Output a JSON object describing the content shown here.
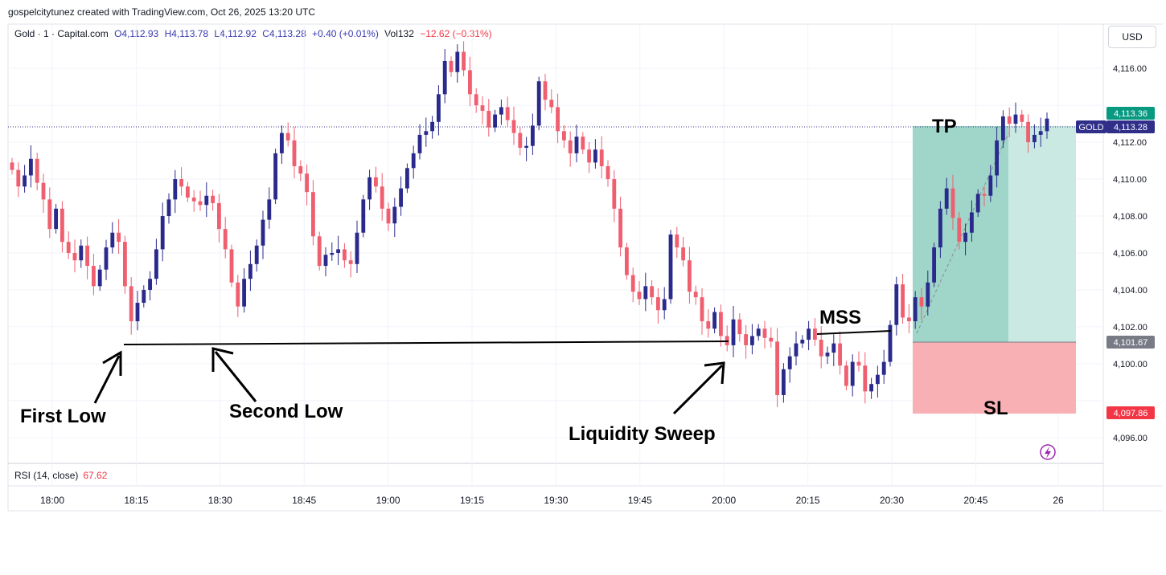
{
  "header": {
    "attribution": "gospelcitytunez created with TradingView.com, Oct 26, 2025 13:20 UTC"
  },
  "legend": {
    "symbol": "Gold · 1 · Capital.com",
    "open": "O4,112.93",
    "high": "H4,113.78",
    "low": "L4,112.92",
    "close": "C4,113.28",
    "change": "+0.40 (+0.01%)",
    "vol_label": "Vol132",
    "vol_change": "−12.62 (−0.31%)"
  },
  "currency_button": "USD",
  "rsi": {
    "label": "RSI (14, close)",
    "value": "67.62"
  },
  "colors": {
    "up": "#2a2a8c",
    "down": "#ef5f70",
    "tp_fill": "#9fd6c9",
    "sl_fill": "#f8b0b4",
    "price_tag": "#2f2f8a",
    "tp_tag": "#089981",
    "sl_tag": "#f23645",
    "entry_tag": "#787b86"
  },
  "price_tags": {
    "tp": "4,113.36",
    "gold_label": "GOLD",
    "gold_price": "4,113.28",
    "entry": "4,101.67",
    "sl": "4,097.86"
  },
  "annotations": {
    "first_low": "First Low",
    "second_low": "Second Low",
    "liquidity_sweep": "Liquidity Sweep",
    "mss": "MSS",
    "tp": "TP",
    "sl": "SL"
  },
  "chart_data": {
    "type": "candlestick",
    "symbol": "Gold",
    "interval": "1",
    "y_ticks": [
      4096,
      4098,
      4100,
      4102,
      4104,
      4106,
      4108,
      4110,
      4112,
      4114,
      4116
    ],
    "y_tick_labels": [
      "4,096.00",
      "",
      "4,100.00",
      "4,102.00",
      "4,104.00",
      "4,106.00",
      "4,108.00",
      "4,110.00",
      "4,112.00",
      "",
      "4,116.00"
    ],
    "x_tick_labels": [
      "18:00",
      "18:15",
      "18:30",
      "18:45",
      "19:00",
      "19:15",
      "19:30",
      "19:45",
      "20:00",
      "20:15",
      "20:30",
      "20:45",
      "26"
    ],
    "ylim": [
      4094.6,
      4118.4
    ],
    "levels": {
      "first_low_line_start": 4101.6,
      "second_low_line": 4101.6,
      "entry": 4101.67,
      "take_profit": 4113.36,
      "stop_loss": 4097.86,
      "current": 4113.28
    },
    "closes": [
      4110.5,
      4109.6,
      4110.2,
      4111.1,
      4109.8,
      4108.9,
      4107.3,
      4108.4,
      4106.6,
      4106.0,
      4105.6,
      4106.4,
      4105.3,
      4104.2,
      4105.1,
      4106.3,
      4107.1,
      4106.6,
      4104.2,
      4102.3,
      4103.3,
      4104.0,
      4104.6,
      4106.2,
      4108.0,
      4108.9,
      4110.0,
      4109.6,
      4109.0,
      4108.8,
      4108.6,
      4109.1,
      4108.7,
      4107.3,
      4106.2,
      4104.4,
      4103.1,
      4104.6,
      4105.4,
      4106.4,
      4107.8,
      4108.9,
      4111.4,
      4112.5,
      4112.1,
      4110.7,
      4110.3,
      4109.3,
      4106.9,
      4105.3,
      4105.9,
      4106.0,
      4106.2,
      4105.6,
      4105.4,
      4107.1,
      4108.9,
      4110.1,
      4109.6,
      4108.4,
      4107.6,
      4108.5,
      4109.5,
      4110.6,
      4111.4,
      4112.4,
      4112.6,
      4113.1,
      4114.6,
      4116.4,
      4115.8,
      4116.9,
      4115.9,
      4114.6,
      4114.0,
      4113.7,
      4112.8,
      4113.5,
      4113.9,
      4113.2,
      4112.5,
      4111.7,
      4111.8,
      4112.9,
      4115.3,
      4114.3,
      4113.9,
      4112.6,
      4112.1,
      4111.4,
      4112.3,
      4111.6,
      4110.9,
      4111.6,
      4110.7,
      4110.0,
      4108.4,
      4106.3,
      4104.8,
      4103.9,
      4103.5,
      4104.2,
      4103.6,
      4102.9,
      4103.5,
      4107.0,
      4106.3,
      4105.6,
      4103.9,
      4103.6,
      4102.3,
      4101.9,
      4102.8,
      4101.5,
      4101.0,
      4102.4,
      4101.6,
      4101.0,
      4101.5,
      4101.9,
      4101.4,
      4101.2,
      4098.3,
      4099.7,
      4100.4,
      4101.1,
      4101.3,
      4101.9,
      4101.3,
      4100.4,
      4100.6,
      4101.1,
      4099.9,
      4098.8,
      4100.1,
      4099.9,
      4098.5,
      4098.9,
      4099.4,
      4100.1,
      4102.1,
      4104.3,
      4102.5,
      4102.3,
      4103.6,
      4103.1,
      4104.4,
      4106.3,
      4108.4,
      4109.5,
      4107.9,
      4106.6,
      4107.1,
      4108.2,
      4109.2,
      4109.1,
      4110.2,
      4112.1,
      4113.4,
      4113.0,
      4113.5,
      4113.1,
      4112.0,
      4112.4,
      4112.6,
      4113.28
    ],
    "panes": [
      "price",
      "RSI (14, close)"
    ]
  }
}
